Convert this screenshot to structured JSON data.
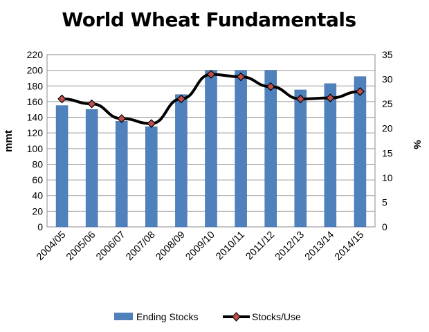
{
  "chart_data": {
    "type": "bar",
    "title": "World Wheat Fundamentals",
    "xlabel": "",
    "ylabel": "mmt",
    "y2label": "%",
    "categories": [
      "2004/05",
      "2005/06",
      "2006/07",
      "2007/08",
      "2008/09",
      "2009/10",
      "2010/11",
      "2011/12",
      "2012/13",
      "2013/14",
      "2014/15"
    ],
    "ylim": [
      0,
      220
    ],
    "y_ticks": [
      "0",
      "20",
      "40",
      "60",
      "80",
      "100",
      "120",
      "140",
      "160",
      "180",
      "200",
      "220"
    ],
    "y2lim": [
      0,
      35
    ],
    "y2_ticks": [
      "0",
      "5",
      "10",
      "15",
      "20",
      "25",
      "30",
      "35"
    ],
    "grid": true,
    "legend_position": "bottom",
    "series": [
      {
        "name": "Ending Stocks",
        "type": "bar",
        "axis": "left",
        "color": "#4F81BD",
        "values": [
          155,
          150,
          135,
          128,
          169,
          200,
          200,
          200,
          175,
          183,
          192
        ]
      },
      {
        "name": "Stocks/Use",
        "type": "line",
        "axis": "right",
        "color": "#000000",
        "marker_color": "#C0504D",
        "values": [
          26.0,
          25.0,
          22.0,
          21.0,
          26.0,
          31.0,
          30.5,
          28.5,
          26.0,
          26.2,
          27.5
        ]
      }
    ]
  }
}
